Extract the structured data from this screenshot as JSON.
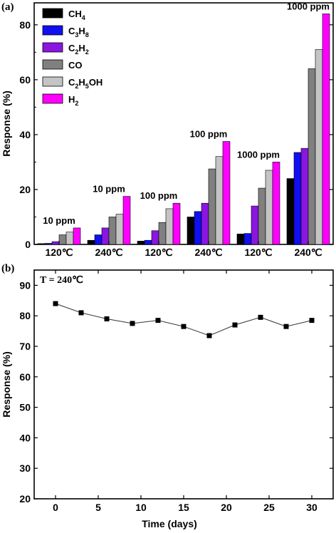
{
  "chart_data": [
    {
      "panel_label": "(a)",
      "type": "bar",
      "ylabel": "Response (%)",
      "ylim": [
        0,
        88
      ],
      "yticks": [
        0,
        20,
        40,
        60,
        80
      ],
      "legend_position": "top-left",
      "series": [
        {
          "name_base": "CH",
          "name_sub": "4",
          "color": "#000000"
        },
        {
          "name_base": "C",
          "name_sub": "3",
          "name_base2": "H",
          "name_sub2": "8",
          "color": "#1010f0"
        },
        {
          "name_base": "C",
          "name_sub": "2",
          "name_base2": "H",
          "name_sub2": "2",
          "color": "#8a16e0"
        },
        {
          "name_base": "CO",
          "color": "#808080"
        },
        {
          "name_base": "C",
          "name_sub": "2",
          "name_base2": "H",
          "name_sub2": "5",
          "name_base3": "OH",
          "color": "#c4c4c4"
        },
        {
          "name_base": "H",
          "name_sub": "2",
          "color": "#ff00ff"
        }
      ],
      "groups": [
        {
          "temp": "120℃",
          "conc": "10 ppm",
          "values": [
            0.3,
            0.4,
            1.0,
            3.5,
            4.5,
            6.0
          ]
        },
        {
          "temp": "240℃",
          "conc": "10 ppm",
          "values": [
            1.5,
            3.5,
            6.0,
            10.0,
            11.0,
            17.5
          ]
        },
        {
          "temp": "120℃",
          "conc": "100 ppm",
          "values": [
            1.2,
            1.5,
            5.0,
            8.0,
            13.0,
            15.0
          ]
        },
        {
          "temp": "240℃",
          "conc": "100 ppm",
          "values": [
            10.0,
            12.0,
            15.0,
            27.5,
            32.0,
            37.5
          ]
        },
        {
          "temp": "120℃",
          "conc": "1000 ppm",
          "values": [
            3.8,
            4.0,
            14.0,
            20.5,
            27.0,
            30.0
          ]
        },
        {
          "temp": "240℃",
          "conc": "1000 ppm",
          "values": [
            24.0,
            33.5,
            35.0,
            64.0,
            71.0,
            84.0
          ]
        }
      ]
    },
    {
      "panel_label": "(b)",
      "type": "line",
      "annotation": "T = 240℃",
      "xlabel": "Time (days)",
      "ylabel": "Response (%)",
      "xlim": [
        -2.5,
        32.5
      ],
      "ylim": [
        20,
        95
      ],
      "xticks": [
        0,
        5,
        10,
        15,
        20,
        25,
        30
      ],
      "yticks": [
        20,
        30,
        40,
        50,
        60,
        70,
        80,
        90
      ],
      "x": [
        0,
        3,
        6,
        9,
        12,
        15,
        18,
        21,
        24,
        27,
        30
      ],
      "y": [
        84.0,
        81.0,
        79.0,
        77.5,
        78.5,
        76.5,
        73.5,
        77.0,
        79.5,
        76.5,
        78.5
      ]
    }
  ]
}
